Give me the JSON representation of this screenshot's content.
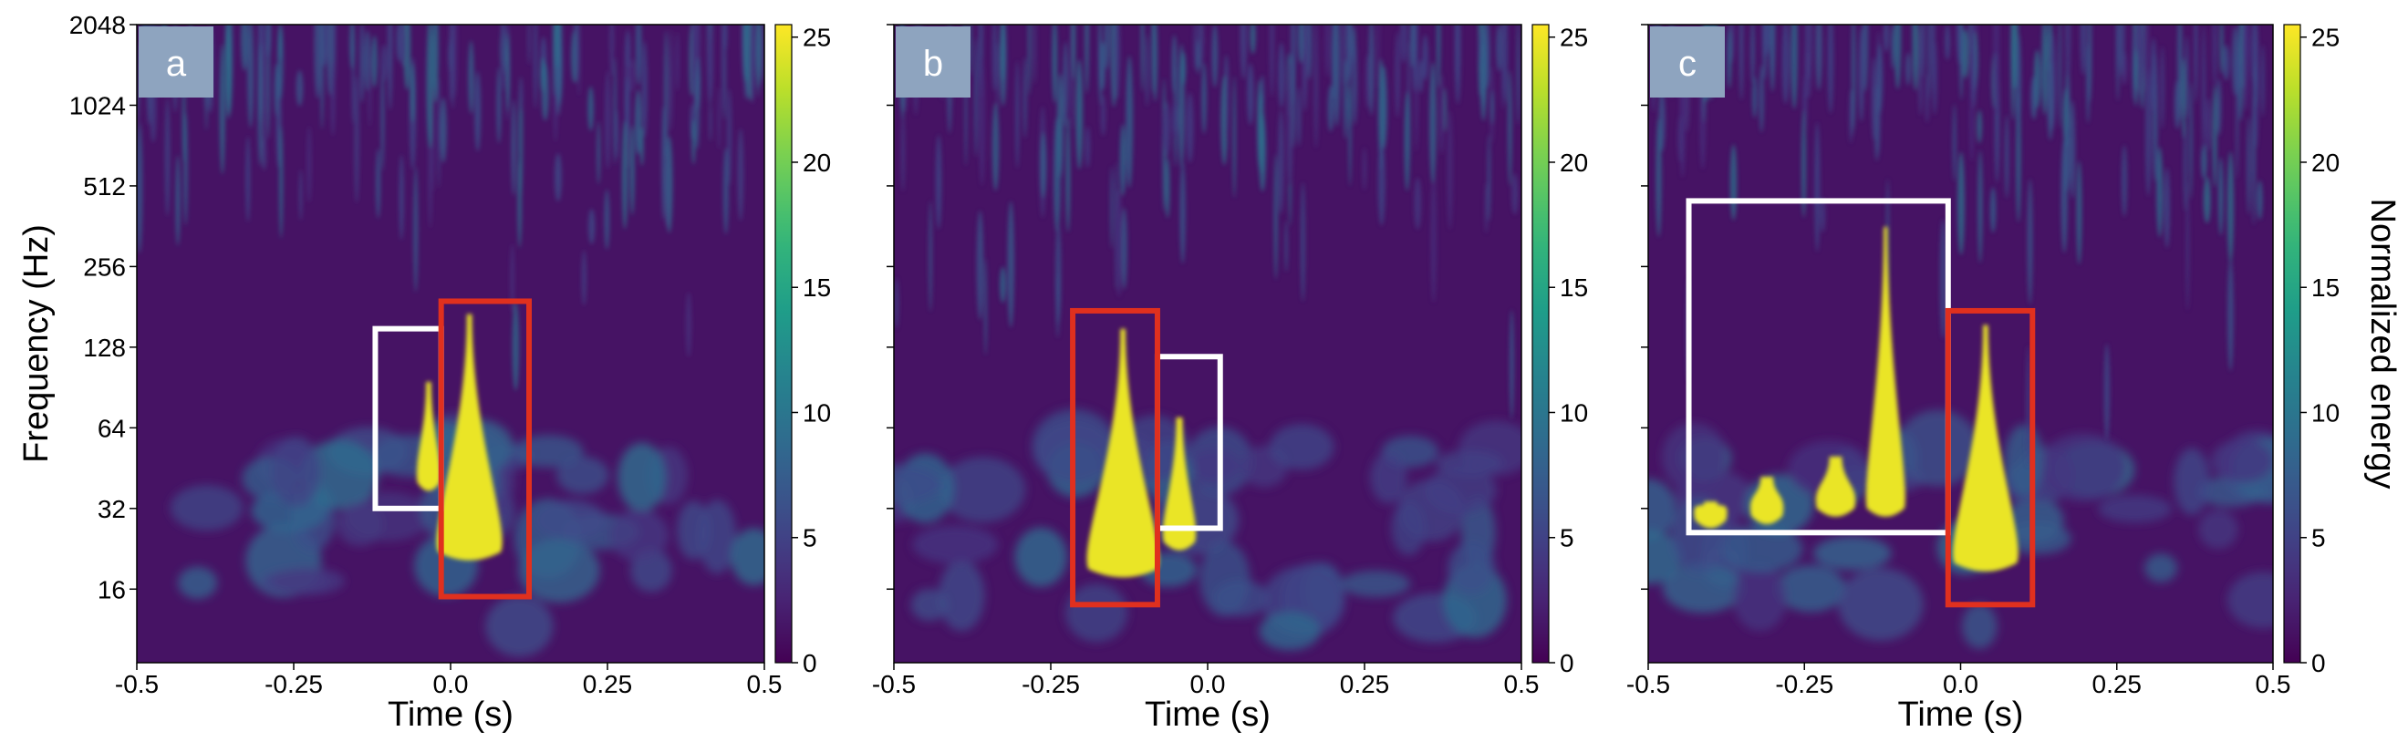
{
  "chart_data": [
    {
      "type": "heatmap",
      "panel_label": "a",
      "xlabel": "Time (s)",
      "ylabel": "Frequency (Hz)",
      "xlim": [
        -0.5,
        0.5
      ],
      "x_ticks": [
        -0.5,
        -0.25,
        0,
        0.25,
        0.5
      ],
      "x_tick_labels": [
        "-0.5",
        "-0.25",
        "0.0",
        "0.25",
        "0.5"
      ],
      "y_scale": "log2",
      "ylim": [
        8.5,
        2048
      ],
      "y_ticks": [
        16,
        32,
        64,
        128,
        256,
        512,
        1024,
        2048
      ],
      "y_tick_labels": [
        "16",
        "32",
        "64",
        "128",
        "256",
        "512",
        "1024",
        "2048"
      ],
      "colorbar": {
        "range": [
          0,
          25.5
        ],
        "ticks": [
          0,
          5,
          10,
          15,
          20,
          25
        ],
        "tick_labels": [
          "0",
          "5",
          "10",
          "15",
          "20",
          "25"
        ],
        "label": ""
      },
      "boxes": [
        {
          "color": "#ffffff",
          "t": [
            -0.12,
            -0.015
          ],
          "f": [
            32,
            150
          ]
        },
        {
          "color": "#e0301e",
          "t": [
            -0.015,
            0.125
          ],
          "f": [
            15,
            190
          ]
        }
      ]
    },
    {
      "type": "heatmap",
      "panel_label": "b",
      "xlabel": "Time (s)",
      "ylabel": "",
      "xlim": [
        -0.5,
        0.5
      ],
      "x_ticks": [
        -0.5,
        -0.25,
        0,
        0.25,
        0.5
      ],
      "x_tick_labels": [
        "-0.5",
        "-0.25",
        "0.0",
        "0.25",
        "0.5"
      ],
      "y_scale": "log2",
      "ylim": [
        8.5,
        2048
      ],
      "y_ticks": [
        16,
        32,
        64,
        128,
        256,
        512,
        1024,
        2048
      ],
      "y_tick_labels": [],
      "colorbar": {
        "range": [
          0,
          25.5
        ],
        "ticks": [
          0,
          5,
          10,
          15,
          20,
          25
        ],
        "tick_labels": [
          "0",
          "5",
          "10",
          "15",
          "20",
          "25"
        ],
        "label": ""
      },
      "boxes": [
        {
          "color": "#ffffff",
          "t": [
            -0.08,
            0.02
          ],
          "f": [
            27,
            118
          ]
        },
        {
          "color": "#e0301e",
          "t": [
            -0.215,
            -0.08
          ],
          "f": [
            14,
            175
          ]
        }
      ]
    },
    {
      "type": "heatmap",
      "panel_label": "c",
      "xlabel": "Time (s)",
      "ylabel": "",
      "xlim": [
        -0.5,
        0.5
      ],
      "x_ticks": [
        -0.5,
        -0.25,
        0,
        0.25,
        0.5
      ],
      "x_tick_labels": [
        "-0.5",
        "-0.25",
        "0.0",
        "0.25",
        "0.5"
      ],
      "y_scale": "log2",
      "ylim": [
        8.5,
        2048
      ],
      "y_ticks": [
        16,
        32,
        64,
        128,
        256,
        512,
        1024,
        2048
      ],
      "y_tick_labels": [],
      "colorbar": {
        "range": [
          0,
          25.5
        ],
        "ticks": [
          0,
          5,
          10,
          15,
          20,
          25
        ],
        "tick_labels": [
          "0",
          "5",
          "10",
          "15",
          "20",
          "25"
        ],
        "label": "Normalized energy"
      },
      "boxes": [
        {
          "color": "#ffffff",
          "t": [
            -0.435,
            -0.02
          ],
          "f": [
            26,
            450
          ]
        },
        {
          "color": "#e0301e",
          "t": [
            -0.02,
            0.115
          ],
          "f": [
            14,
            175
          ]
        }
      ]
    }
  ]
}
